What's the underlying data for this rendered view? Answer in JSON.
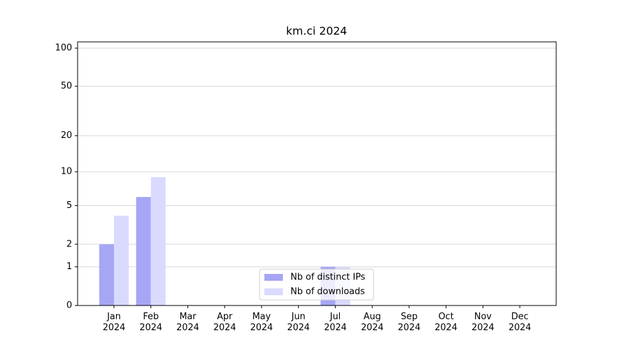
{
  "chart_data": {
    "type": "bar",
    "title": "km.ci 2024",
    "categories": [
      "Jan 2024",
      "Feb 2024",
      "Mar 2024",
      "Apr 2024",
      "May 2024",
      "Jun 2024",
      "Jul 2024",
      "Aug 2024",
      "Sep 2024",
      "Oct 2024",
      "Nov 2024",
      "Dec 2024"
    ],
    "series": [
      {
        "name": "Nb of distinct IPs",
        "color": "#a6a6f5",
        "values": [
          2,
          6,
          0,
          0,
          0,
          0,
          1,
          0,
          0,
          0,
          0,
          0
        ]
      },
      {
        "name": "Nb of downloads",
        "color": "#dadaff",
        "values": [
          4,
          9,
          0,
          0,
          0,
          0,
          1,
          0,
          0,
          0,
          0,
          0
        ]
      }
    ],
    "yscale": "log1p",
    "ylim": [
      0,
      112
    ],
    "yticks": [
      0,
      1,
      2,
      5,
      10,
      20,
      50,
      100
    ],
    "grid": true,
    "legend": "lower center"
  }
}
